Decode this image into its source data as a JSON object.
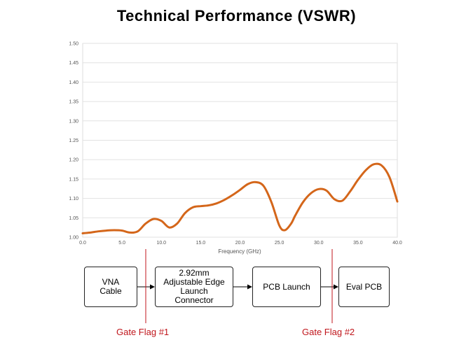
{
  "title": "Technical Performance (VSWR)",
  "chart_data": {
    "type": "line",
    "title": "Technical Performance (VSWR)",
    "xlabel": "Frequency (GHz)",
    "ylabel": "",
    "xlim": [
      0,
      40
    ],
    "ylim": [
      1.0,
      1.5
    ],
    "x_ticks": [
      "0.0",
      "5.0",
      "10.0",
      "15.0",
      "20.0",
      "25.0",
      "30.0",
      "35.0",
      "40.0"
    ],
    "y_ticks": [
      "1.00",
      "1.05",
      "1.10",
      "1.15",
      "1.20",
      "1.25",
      "1.30",
      "1.35",
      "1.40",
      "1.45",
      "1.50"
    ],
    "grid": "horizontal",
    "series": [
      {
        "name": "",
        "color": "#d4661a",
        "x": [
          0,
          1,
          2,
          3,
          4,
          5,
          6,
          7,
          8,
          9,
          10,
          11,
          12,
          13,
          14,
          15,
          16,
          17,
          18,
          19,
          20,
          21,
          22,
          23,
          24,
          25,
          25.7,
          26.5,
          27,
          28,
          29,
          30,
          31,
          32,
          33,
          34,
          35,
          36,
          37,
          38,
          39,
          40
        ],
        "y": [
          1.01,
          1.012,
          1.015,
          1.017,
          1.018,
          1.017,
          1.012,
          1.015,
          1.035,
          1.047,
          1.042,
          1.025,
          1.035,
          1.062,
          1.077,
          1.08,
          1.082,
          1.087,
          1.096,
          1.108,
          1.122,
          1.137,
          1.142,
          1.132,
          1.09,
          1.03,
          1.018,
          1.035,
          1.055,
          1.09,
          1.113,
          1.124,
          1.12,
          1.098,
          1.094,
          1.118,
          1.148,
          1.173,
          1.188,
          1.185,
          1.155,
          1.092
        ]
      }
    ]
  },
  "diagram": {
    "boxes": [
      {
        "id": "vna",
        "lines": [
          "VNA",
          "Cable"
        ]
      },
      {
        "id": "connector",
        "lines": [
          "2.92mm",
          "Adjustable Edge",
          "Launch",
          "Connector"
        ]
      },
      {
        "id": "pcb-launch",
        "lines": [
          "PCB Launch"
        ]
      },
      {
        "id": "eval-pcb",
        "lines": [
          "Eval PCB"
        ]
      }
    ],
    "gate_flags": [
      "Gate Flag #1",
      "Gate Flag #2"
    ],
    "arrow_color": "#000000",
    "gate_color": "#c0161c"
  }
}
